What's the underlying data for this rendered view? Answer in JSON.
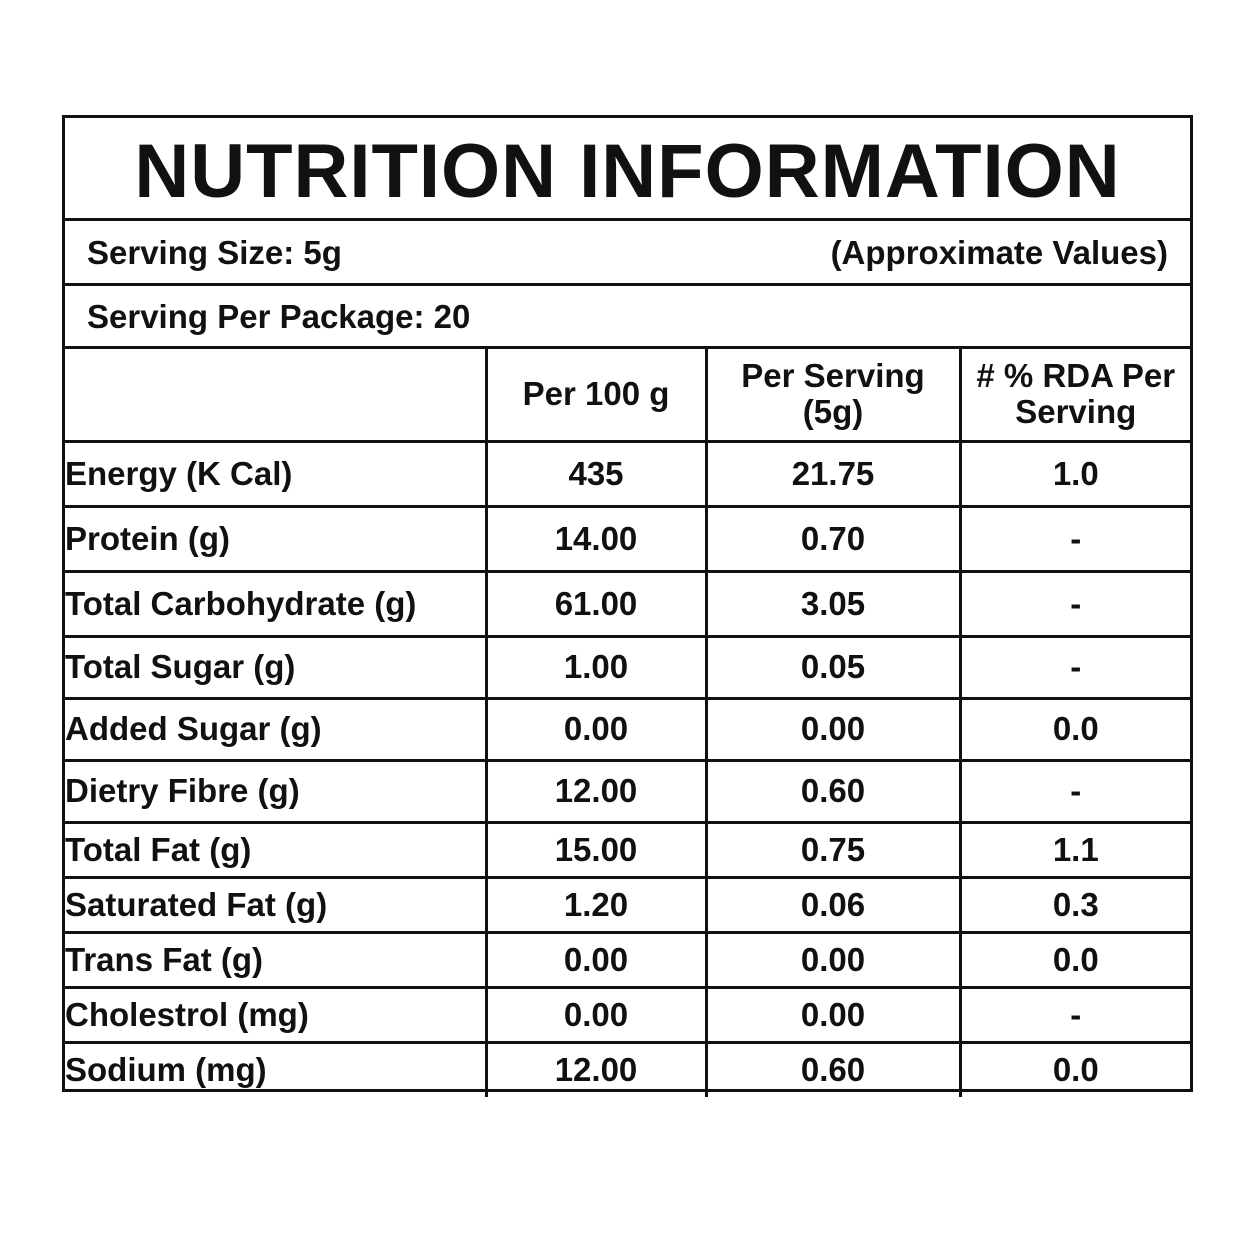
{
  "title": "NUTRITION INFORMATION",
  "serving_size": "Serving Size: 5g",
  "approximate_note": "(Approximate Values)",
  "serving_per_package": "Serving Per Package: 20",
  "columns": {
    "blank": "",
    "per_100g": "Per 100 g",
    "per_serving_line1": "Per Serving",
    "per_serving_line2": "(5g)",
    "rda_line1": "# % RDA Per",
    "rda_line2": "Serving"
  },
  "rows": [
    {
      "name": "Energy (K Cal)",
      "per_100g": "435",
      "per_serving": "21.75",
      "rda": "1.0"
    },
    {
      "name": "Protein (g)",
      "per_100g": "14.00",
      "per_serving": "0.70",
      "rda": "-"
    },
    {
      "name": "Total Carbohydrate (g)",
      "per_100g": "61.00",
      "per_serving": "3.05",
      "rda": "-"
    },
    {
      "name": "Total Sugar (g)",
      "per_100g": "1.00",
      "per_serving": "0.05",
      "rda": "-"
    },
    {
      "name": "Added Sugar (g)",
      "per_100g": "0.00",
      "per_serving": "0.00",
      "rda": "0.0"
    },
    {
      "name": "Dietry Fibre (g)",
      "per_100g": "12.00",
      "per_serving": "0.60",
      "rda": "-"
    },
    {
      "name": "Total Fat (g)",
      "per_100g": "15.00",
      "per_serving": "0.75",
      "rda": "1.1"
    },
    {
      "name": "Saturated Fat (g)",
      "per_100g": "1.20",
      "per_serving": "0.06",
      "rda": "0.3"
    },
    {
      "name": "Trans Fat (g)",
      "per_100g": "0.00",
      "per_serving": "0.00",
      "rda": "0.0"
    },
    {
      "name": "Cholestrol (mg)",
      "per_100g": "0.00",
      "per_serving": "0.00",
      "rda": "-"
    },
    {
      "name": "Sodium (mg)",
      "per_100g": "12.00",
      "per_serving": "0.60",
      "rda": "0.0"
    }
  ]
}
